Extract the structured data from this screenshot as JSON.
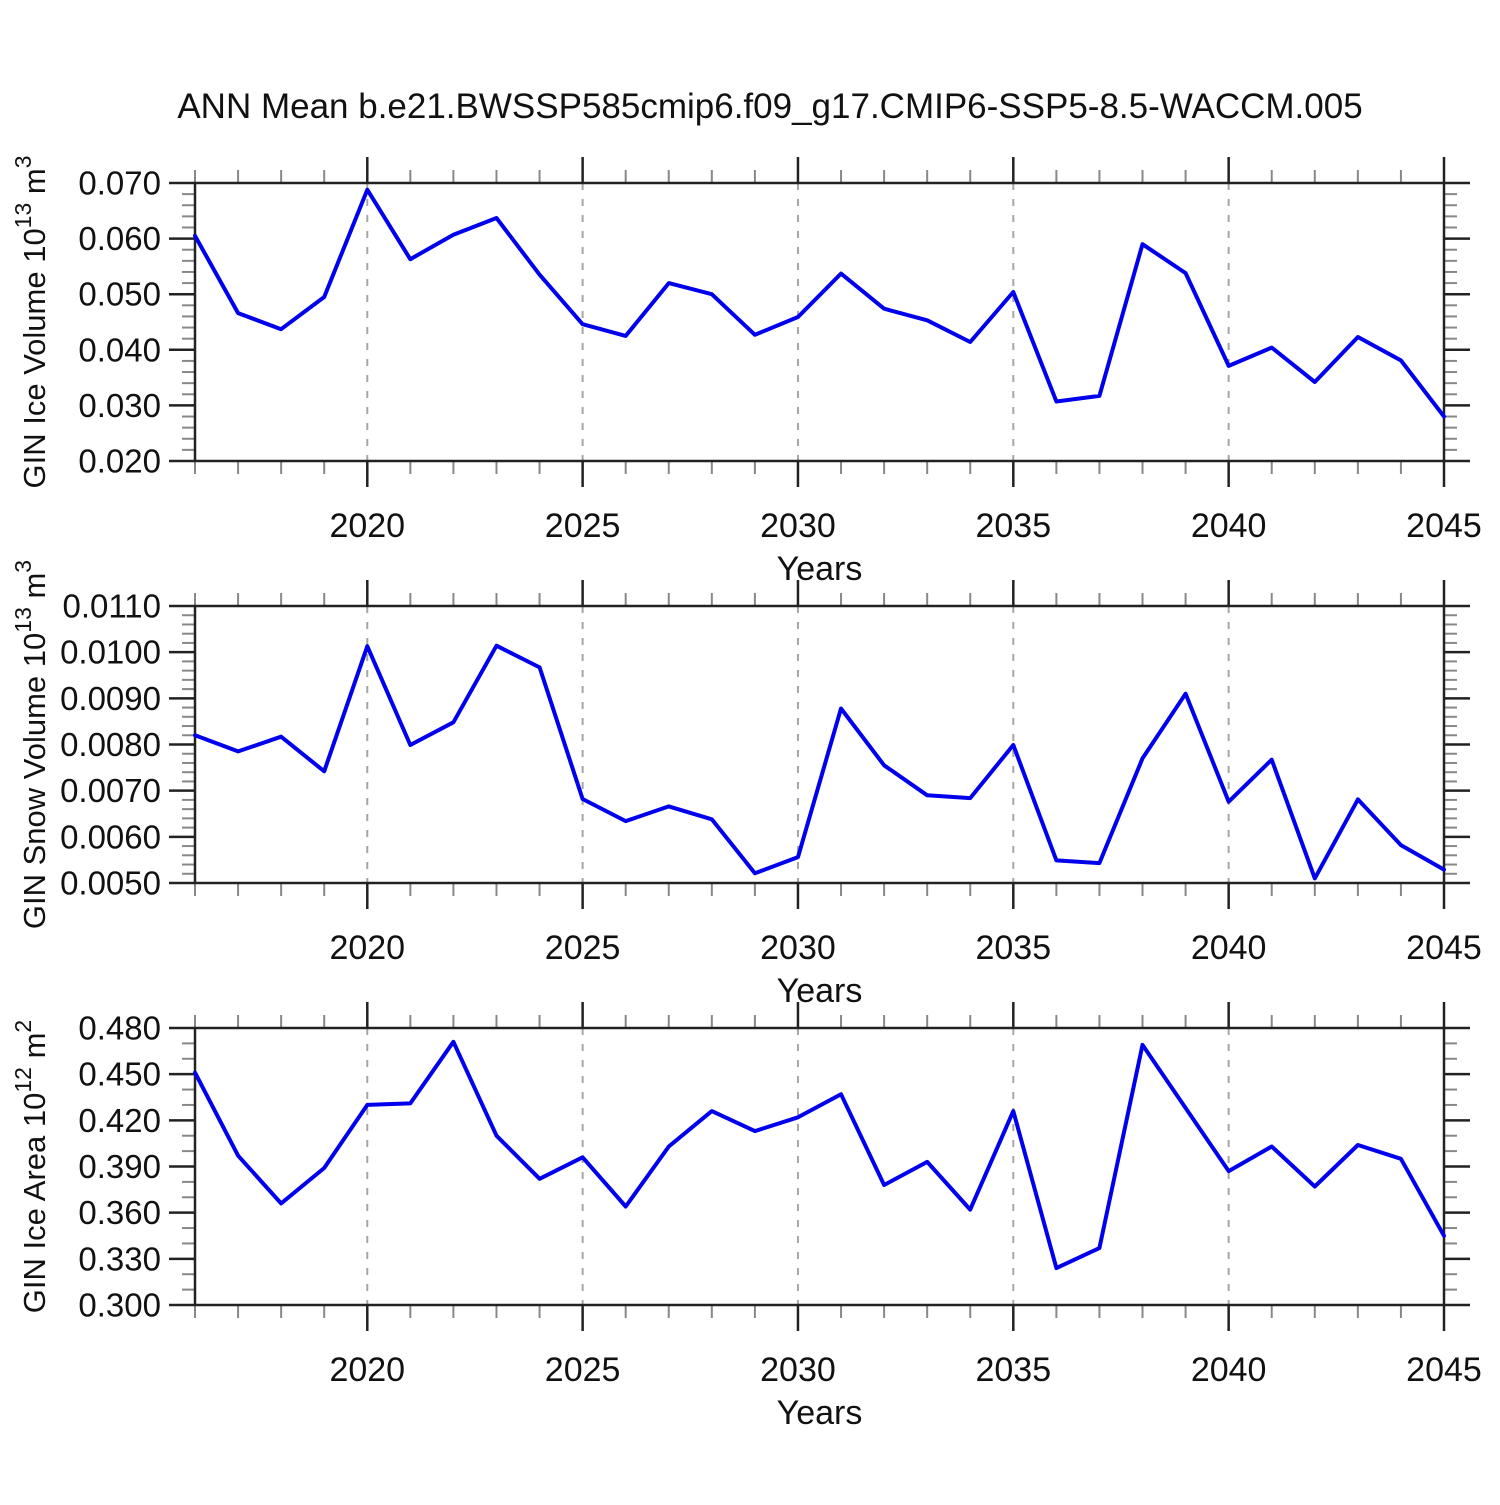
{
  "title": "ANN Mean b.e21.BWSSP585cmip6.f09_g17.CMIP6-SSP5-8.5-WACCM.005",
  "line_color": "#0000EE",
  "grid_color": "#a6a6a6",
  "frame_color": "#222222",
  "minor_tick_color": "#888888",
  "years": [
    2016,
    2017,
    2018,
    2019,
    2020,
    2021,
    2022,
    2023,
    2024,
    2025,
    2026,
    2027,
    2028,
    2029,
    2030,
    2031,
    2032,
    2033,
    2034,
    2035,
    2036,
    2037,
    2038,
    2039,
    2040,
    2041,
    2042,
    2043,
    2044,
    2045
  ],
  "chart_data": [
    {
      "type": "line",
      "name": "gin-ice-volume-chart",
      "ylabel": "GIN Ice Volume 10^13 m^3",
      "ylabel_parts": [
        {
          "t": "GIN Ice Volume 10"
        },
        {
          "t": "13",
          "sup": true
        },
        {
          "t": " m"
        },
        {
          "t": "3",
          "sup": true
        }
      ],
      "xlabel": "Years",
      "values": [
        0.0605,
        0.0466,
        0.0437,
        0.0495,
        0.0688,
        0.0563,
        0.0607,
        0.0637,
        0.0535,
        0.0446,
        0.0425,
        0.052,
        0.05,
        0.0427,
        0.0459,
        0.0537,
        0.0474,
        0.0453,
        0.0414,
        0.0504,
        0.0307,
        0.0317,
        0.059,
        0.0538,
        0.0371,
        0.0404,
        0.0342,
        0.0423,
        0.0381,
        0.028
      ],
      "ylim": [
        0.02,
        0.07
      ],
      "ytick_major_step": 0.01,
      "ytick_minor_step": 0.002,
      "y_decimals": 3,
      "ytick_labels": [
        "0.020",
        "0.030",
        "0.040",
        "0.050",
        "0.060",
        "0.070"
      ],
      "xlim": [
        2016,
        2045
      ],
      "xtick_major_labels": [
        "2020",
        "2025",
        "2030",
        "2035",
        "2040",
        "2045"
      ],
      "xtick_major_years": [
        2020,
        2025,
        2030,
        2035,
        2040,
        2045
      ],
      "xtick_minor_step": 1,
      "grid_x": [
        2020,
        2025,
        2030,
        2035,
        2040
      ],
      "grid_style": "vertical-dashed",
      "legend": "none"
    },
    {
      "type": "line",
      "name": "gin-snow-volume-chart",
      "ylabel": "GIN Snow Volume 10^13 m^3",
      "ylabel_parts": [
        {
          "t": "GIN Snow Volume 10"
        },
        {
          "t": "13",
          "sup": true
        },
        {
          "t": " m"
        },
        {
          "t": "3",
          "sup": true
        }
      ],
      "xlabel": "Years",
      "values": [
        0.0082,
        0.00785,
        0.00817,
        0.00742,
        0.01013,
        0.00799,
        0.00848,
        0.01014,
        0.00967,
        0.00682,
        0.00634,
        0.00666,
        0.00638,
        0.00521,
        0.00556,
        0.00878,
        0.00755,
        0.0069,
        0.00684,
        0.00799,
        0.00549,
        0.00543,
        0.0077,
        0.0091,
        0.00676,
        0.00767,
        0.0051,
        0.00681,
        0.00582,
        0.00529
      ],
      "ylim": [
        0.005,
        0.011
      ],
      "ytick_major_step": 0.001,
      "ytick_minor_step": 0.0002,
      "y_decimals": 4,
      "ytick_labels": [
        "0.0050",
        "0.0060",
        "0.0070",
        "0.0080",
        "0.0090",
        "0.0100",
        "0.0110"
      ],
      "xlim": [
        2016,
        2045
      ],
      "xtick_major_labels": [
        "2020",
        "2025",
        "2030",
        "2035",
        "2040",
        "2045"
      ],
      "xtick_major_years": [
        2020,
        2025,
        2030,
        2035,
        2040,
        2045
      ],
      "xtick_minor_step": 1,
      "grid_x": [
        2020,
        2025,
        2030,
        2035,
        2040
      ],
      "grid_style": "vertical-dashed",
      "legend": "none"
    },
    {
      "type": "line",
      "name": "gin-ice-area-chart",
      "ylabel": "GIN Ice Area 10^12 m^2",
      "ylabel_parts": [
        {
          "t": "GIN Ice Area 10"
        },
        {
          "t": "12",
          "sup": true
        },
        {
          "t": " m"
        },
        {
          "t": "2",
          "sup": true
        }
      ],
      "xlabel": "Years",
      "values": [
        0.451,
        0.397,
        0.366,
        0.389,
        0.43,
        0.431,
        0.471,
        0.41,
        0.382,
        0.396,
        0.364,
        0.403,
        0.426,
        0.413,
        0.422,
        0.437,
        0.378,
        0.393,
        0.362,
        0.426,
        0.324,
        0.337,
        0.469,
        0.428,
        0.387,
        0.403,
        0.377,
        0.404,
        0.395,
        0.345
      ],
      "ylim": [
        0.3,
        0.48
      ],
      "ytick_major_step": 0.03,
      "ytick_minor_step": 0.01,
      "y_decimals": 3,
      "ytick_labels": [
        "0.300",
        "0.330",
        "0.360",
        "0.390",
        "0.420",
        "0.450",
        "0.480"
      ],
      "xlim": [
        2016,
        2045
      ],
      "xtick_major_labels": [
        "2020",
        "2025",
        "2030",
        "2035",
        "2040",
        "2045"
      ],
      "xtick_major_years": [
        2020,
        2025,
        2030,
        2035,
        2040,
        2045
      ],
      "xtick_minor_step": 1,
      "grid_x": [
        2020,
        2025,
        2030,
        2035,
        2040
      ],
      "grid_style": "vertical-dashed",
      "legend": "none"
    }
  ]
}
